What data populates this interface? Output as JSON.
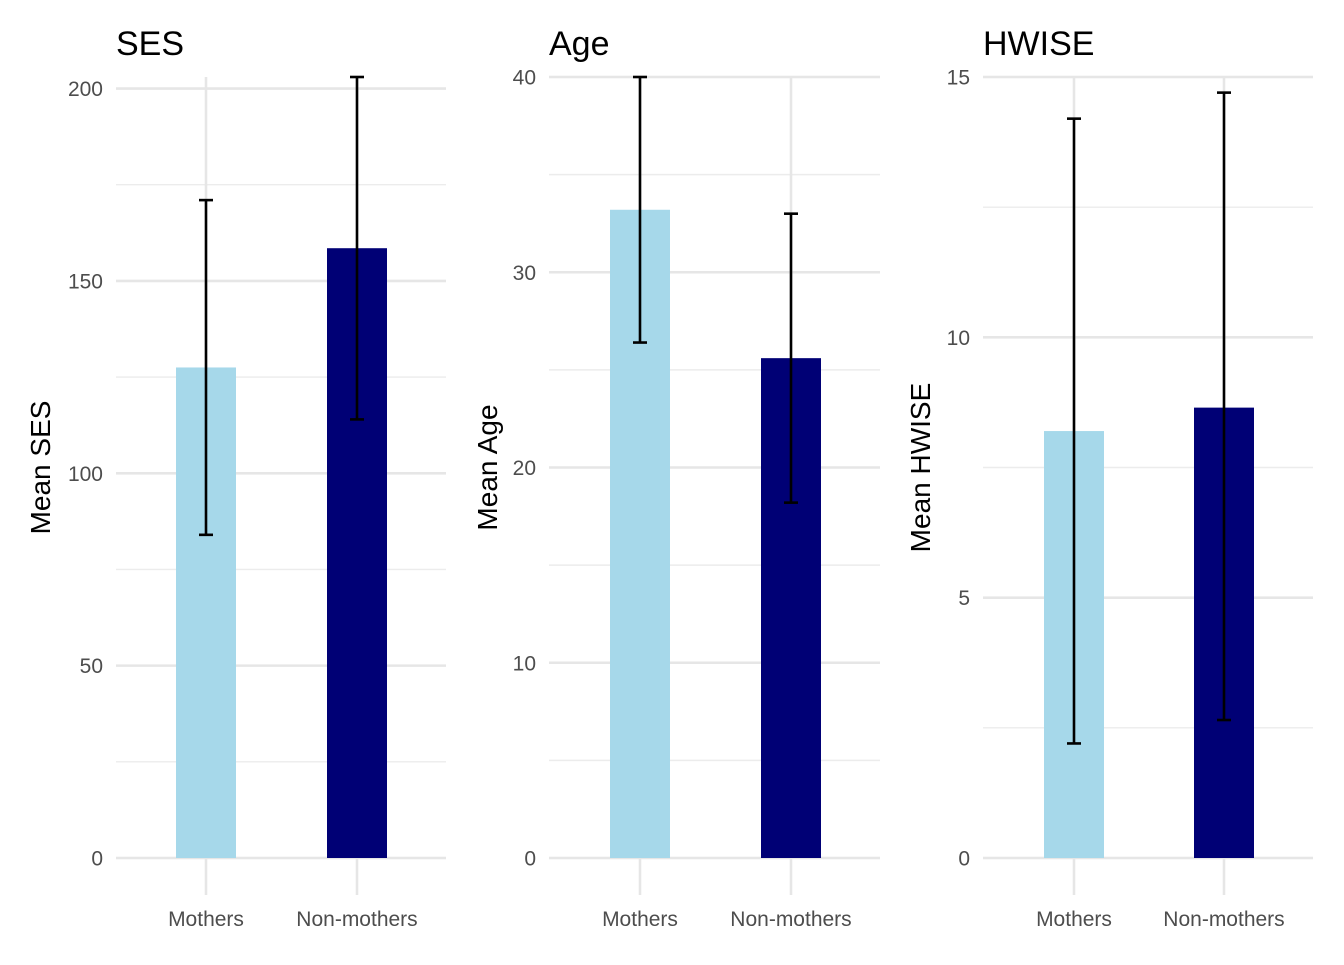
{
  "colors": {
    "mothers": "#a6d8ea",
    "non_mothers": "#000075",
    "error_bar": "#000000",
    "grid": "#e6e6e6",
    "tick_text": "#4d4d4d"
  },
  "chart_data": [
    {
      "type": "bar",
      "title": "SES",
      "ylabel": "Mean SES",
      "xlabel": "",
      "categories": [
        "Mothers",
        "Non-mothers"
      ],
      "values": [
        127.5,
        158.5
      ],
      "error_low": [
        84,
        114
      ],
      "error_high": [
        171,
        203
      ],
      "ylim": [
        0,
        203
      ],
      "yticks": [
        0,
        50,
        100,
        150,
        200
      ],
      "grid": true,
      "legend": "none"
    },
    {
      "type": "bar",
      "title": "Age",
      "ylabel": "Mean Age",
      "xlabel": "",
      "categories": [
        "Mothers",
        "Non-mothers"
      ],
      "values": [
        33.2,
        25.6
      ],
      "error_low": [
        26.4,
        18.2
      ],
      "error_high": [
        40,
        33
      ],
      "ylim": [
        0,
        40
      ],
      "yticks": [
        0,
        10,
        20,
        30,
        40
      ],
      "grid": true,
      "legend": "none"
    },
    {
      "type": "bar",
      "title": "HWISE",
      "ylabel": "Mean HWISE",
      "xlabel": "",
      "categories": [
        "Mothers",
        "Non-mothers"
      ],
      "values": [
        8.2,
        8.65
      ],
      "error_low": [
        2.2,
        2.65
      ],
      "error_high": [
        14.2,
        14.7
      ],
      "ylim": [
        0,
        15
      ],
      "yticks": [
        0,
        5,
        10,
        15
      ],
      "grid": true,
      "legend": "none"
    }
  ]
}
